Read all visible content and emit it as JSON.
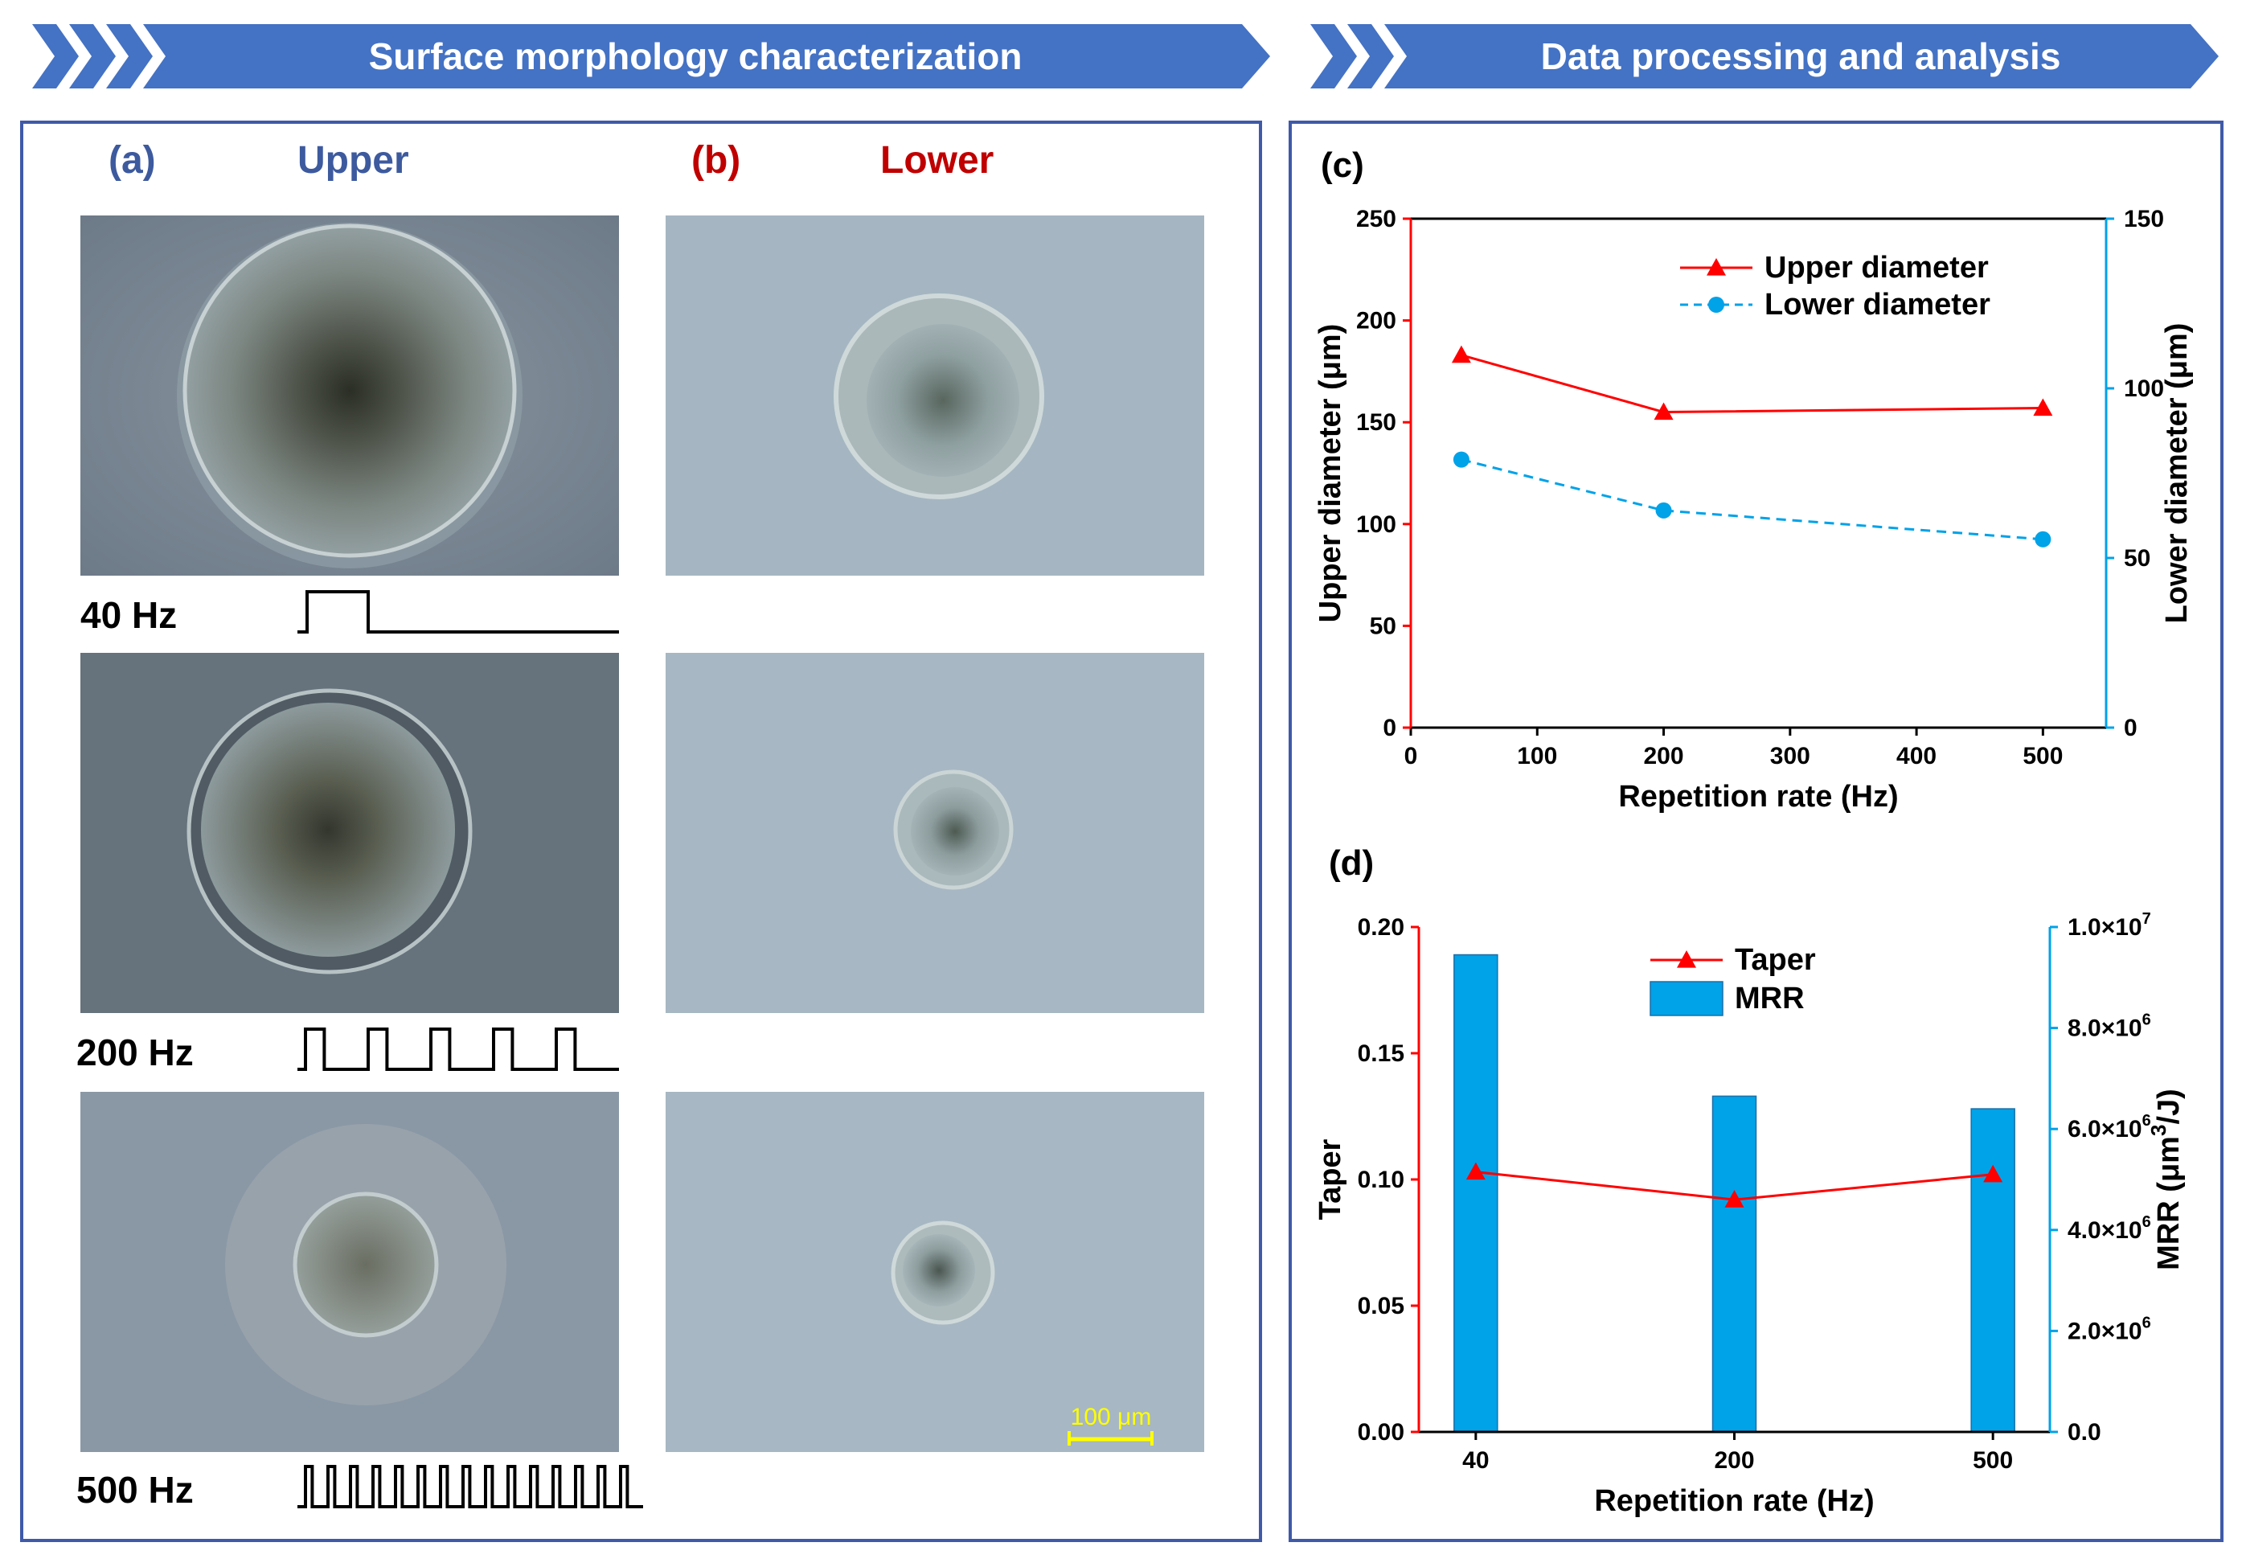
{
  "banners": {
    "left_title": "Surface morphology characterization",
    "right_title": "Data processing and analysis"
  },
  "colors": {
    "banner": "#4472c4",
    "frame": "#3f5aa8",
    "upper_text": "#3d5a9e",
    "lower_text": "#c00000",
    "red_series": "#ff0000",
    "blue_series": "#00a2e8",
    "scale_bar": "#ffff00"
  },
  "morphology": {
    "upper_label": "(a)",
    "upper_title": "Upper",
    "lower_label": "(b)",
    "lower_title": "Lower",
    "frequencies": [
      "40 Hz",
      "200 Hz",
      "500 Hz"
    ],
    "pulse_counts": [
      1,
      5,
      15
    ],
    "scale_bar": "100 μm"
  },
  "chart_data": [
    {
      "panel_label": "(c)",
      "type": "line",
      "x": [
        40,
        200,
        500
      ],
      "xlabel": "Repetition rate (Hz)",
      "xlim": [
        0,
        550
      ],
      "xticks": [
        "0",
        "100",
        "200",
        "300",
        "400",
        "500"
      ],
      "ylabel": "Upper diameter (μm)",
      "ylim": [
        0,
        250
      ],
      "yticks": [
        "0",
        "50",
        "100",
        "150",
        "200",
        "250"
      ],
      "y2label": "Lower diameter (μm)",
      "y2lim": [
        0,
        150
      ],
      "y2ticks": [
        "0",
        "50",
        "100",
        "150"
      ],
      "legend_position": "top-right",
      "series": [
        {
          "name": "Upper diameter",
          "axis": "left",
          "marker": "triangle",
          "line": "solid",
          "color": "#ff0000",
          "values": [
            183,
            155,
            157
          ]
        },
        {
          "name": "Lower diameter",
          "axis": "right",
          "marker": "circle",
          "line": "dashed",
          "color": "#00a2e8",
          "values": [
            79,
            64,
            55.5
          ]
        }
      ]
    },
    {
      "panel_label": "(d)",
      "type": "bar",
      "categories": [
        "40",
        "200",
        "500"
      ],
      "xlabel": "Repetition rate (Hz)",
      "ylabel": "Taper",
      "ylim": [
        0,
        0.2
      ],
      "yticks": [
        "0.00",
        "0.05",
        "0.10",
        "0.15",
        "0.20"
      ],
      "y2label_parts": [
        "MRR (μm",
        "3",
        "/J)"
      ],
      "y2lim": [
        0,
        10000000
      ],
      "y2ticks": [
        {
          "mantissa": "0.0",
          "exp": ""
        },
        {
          "mantissa": "2.0×10",
          "exp": "6"
        },
        {
          "mantissa": "4.0×10",
          "exp": "6"
        },
        {
          "mantissa": "6.0×10",
          "exp": "6"
        },
        {
          "mantissa": "8.0×10",
          "exp": "6"
        },
        {
          "mantissa": "1.0×10",
          "exp": "7"
        }
      ],
      "legend_position": "top-center",
      "series": [
        {
          "name": "Taper",
          "axis": "left",
          "kind": "line",
          "marker": "triangle",
          "color": "#ff0000",
          "values": [
            0.103,
            0.092,
            0.102
          ]
        },
        {
          "name": "MRR",
          "axis": "right",
          "kind": "bar",
          "color": "#00a2e8",
          "values": [
            9450000,
            6650000,
            6400000
          ]
        }
      ]
    }
  ]
}
